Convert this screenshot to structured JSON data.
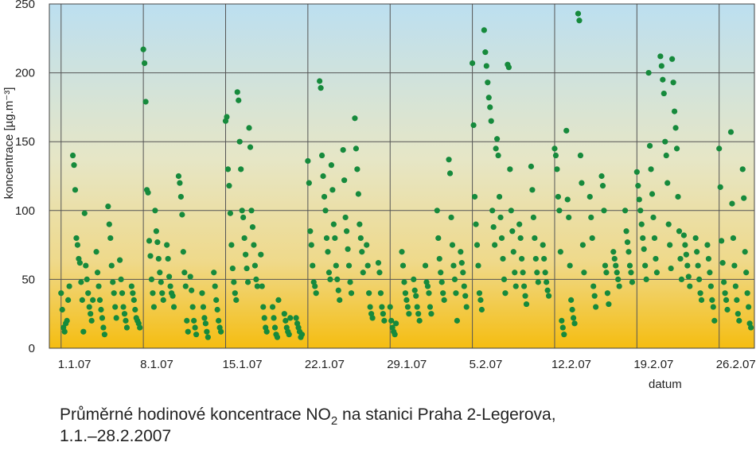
{
  "chart_data": {
    "type": "scatter",
    "title_parts": [
      "Průměrné hodinové koncentrace NO",
      "2",
      " na stanici Praha 2-Legerova,"
    ],
    "title_line2": "1.1.–28.2.2007",
    "xlabel": "datum",
    "ylabel": "koncentrace [µg.m⁻³]",
    "xlim": [
      -1,
      59
    ],
    "xticks": [
      {
        "value": 0,
        "label": "1.1.07"
      },
      {
        "value": 7,
        "label": "8.1.07"
      },
      {
        "value": 14,
        "label": "15.1.07"
      },
      {
        "value": 21,
        "label": "22.1.07"
      },
      {
        "value": 28,
        "label": "29.1.07"
      },
      {
        "value": 35,
        "label": "5.2.07"
      },
      {
        "value": 42,
        "label": "12.2.07"
      },
      {
        "value": 49,
        "label": "19.2.07"
      },
      {
        "value": 56,
        "label": "26.2.07"
      }
    ],
    "ylim": [
      0,
      250
    ],
    "yticks": [
      0,
      50,
      100,
      150,
      200,
      250
    ],
    "grid": true,
    "series": [
      {
        "color": "#168a3c",
        "x": [
          0,
          0.1,
          0.2,
          0.3,
          0.4,
          0.5,
          0.6,
          0.7,
          1,
          1.1,
          1.2,
          1.3,
          1.4,
          1.5,
          1.6,
          1.7,
          1.8,
          1.9,
          2,
          2.1,
          2.2,
          2.3,
          2.4,
          2.5,
          2.6,
          2.7,
          3,
          3.1,
          3.2,
          3.3,
          3.4,
          3.5,
          3.6,
          3.7,
          4,
          4.1,
          4.2,
          4.3,
          4.4,
          4.5,
          4.6,
          4.7,
          5,
          5.1,
          5.2,
          5.3,
          5.4,
          5.5,
          5.6,
          6,
          6.1,
          6.2,
          6.3,
          6.4,
          6.5,
          6.6,
          6.7,
          7,
          7.1,
          7.2,
          7.3,
          7.4,
          7.5,
          7.6,
          7.7,
          7.8,
          7.9,
          8,
          8.1,
          8.2,
          8.3,
          8.4,
          8.5,
          8.6,
          8.7,
          9,
          9.1,
          9.2,
          9.3,
          9.4,
          9.5,
          9.6,
          10,
          10.1,
          10.2,
          10.3,
          10.4,
          10.5,
          10.6,
          10.7,
          10.8,
          11,
          11.1,
          11.2,
          11.3,
          11.4,
          11.5,
          12,
          12.1,
          12.2,
          12.3,
          12.4,
          12.5,
          13,
          13.1,
          13.2,
          13.3,
          13.4,
          13.5,
          13.6,
          14,
          14.1,
          14.2,
          14.3,
          14.4,
          14.5,
          14.6,
          14.7,
          14.8,
          14.9,
          15,
          15.1,
          15.2,
          15.3,
          15.4,
          15.5,
          15.6,
          15.7,
          15.8,
          15.9,
          16,
          16.1,
          16.2,
          16.3,
          16.4,
          16.5,
          16.6,
          16.7,
          17,
          17.1,
          17.2,
          17.3,
          17.4,
          17.5,
          18,
          18.1,
          18.2,
          18.3,
          18.4,
          18.5,
          19,
          19.1,
          19.2,
          19.3,
          19.4,
          19.5,
          20,
          20.1,
          20.2,
          20.3,
          20.4,
          20.5,
          21,
          21.1,
          21.2,
          21.3,
          21.4,
          21.5,
          21.6,
          21.7,
          22,
          22.1,
          22.2,
          22.3,
          22.4,
          22.5,
          22.6,
          22.7,
          22.8,
          22.9,
          23,
          23.1,
          23.2,
          23.3,
          23.4,
          23.5,
          23.6,
          23.7,
          24,
          24.1,
          24.2,
          24.3,
          24.4,
          24.5,
          24.6,
          24.7,
          25,
          25.1,
          25.2,
          25.3,
          25.4,
          25.5,
          25.6,
          25.7,
          26,
          26.1,
          26.2,
          26.3,
          26.4,
          26.5,
          27,
          27.1,
          27.2,
          27.3,
          27.4,
          27.5,
          28,
          28.1,
          28.2,
          28.3,
          28.4,
          28.5,
          29,
          29.1,
          29.2,
          29.3,
          29.4,
          29.5,
          29.6,
          30,
          30.1,
          30.2,
          30.3,
          30.4,
          30.5,
          31,
          31.1,
          31.2,
          31.3,
          31.4,
          31.5,
          32,
          32.1,
          32.2,
          32.3,
          32.4,
          32.5,
          32.6,
          33,
          33.1,
          33.2,
          33.3,
          33.4,
          33.5,
          33.6,
          33.7,
          34,
          34.1,
          34.2,
          34.3,
          34.4,
          34.5,
          35,
          35.1,
          35.2,
          35.3,
          35.4,
          35.5,
          35.6,
          35.7,
          35.8,
          36,
          36.1,
          36.2,
          36.3,
          36.4,
          36.5,
          36.6,
          36.7,
          36.8,
          36.9,
          37,
          37.1,
          37.2,
          37.3,
          37.4,
          37.5,
          37.6,
          37.7,
          37.8,
          38,
          38.1,
          38.2,
          38.3,
          38.4,
          38.5,
          38.6,
          38.7,
          39,
          39.1,
          39.2,
          39.3,
          39.4,
          39.5,
          39.6,
          40,
          40.1,
          40.2,
          40.3,
          40.4,
          40.5,
          40.6,
          41,
          41.1,
          41.2,
          41.3,
          41.4,
          41.5,
          42,
          42.1,
          42.2,
          42.3,
          42.4,
          42.5,
          42.6,
          42.7,
          42.8,
          43,
          43.1,
          43.2,
          43.3,
          43.4,
          43.5,
          43.6,
          43.7,
          44,
          44.1,
          44.2,
          44.3,
          44.4,
          44.5,
          45,
          45.1,
          45.2,
          45.3,
          45.4,
          45.5,
          46,
          46.1,
          46.2,
          46.3,
          46.4,
          46.5,
          46.6,
          47,
          47.1,
          47.2,
          47.3,
          47.4,
          47.5,
          48,
          48.1,
          48.2,
          48.3,
          48.4,
          48.5,
          48.6,
          49,
          49.1,
          49.2,
          49.3,
          49.4,
          49.5,
          49.6,
          49.7,
          49.8,
          50,
          50.1,
          50.2,
          50.3,
          50.4,
          50.5,
          50.6,
          50.7,
          51,
          51.1,
          51.2,
          51.3,
          51.4,
          51.5,
          51.6,
          51.7,
          51.8,
          51.9,
          52,
          52.1,
          52.2,
          52.3,
          52.4,
          52.5,
          52.6,
          52.7,
          52.8,
          53,
          53.1,
          53.2,
          53.3,
          53.4,
          53.5,
          54,
          54.1,
          54.2,
          54.3,
          54.4,
          54.5,
          55,
          55.1,
          55.2,
          55.3,
          55.4,
          55.5,
          55.6,
          56,
          56.1,
          56.2,
          56.3,
          56.4,
          56.5,
          56.6,
          56.7,
          57,
          57.1,
          57.2,
          57.3,
          57.4,
          57.5,
          57.6,
          57.7,
          58,
          58.1,
          58.2,
          58.3,
          58.4,
          58.5,
          58.6,
          58.7
        ],
        "values": [
          40,
          28,
          15,
          12,
          18,
          20,
          35,
          45,
          140,
          133,
          115,
          80,
          75,
          65,
          62,
          48,
          35,
          12,
          98,
          60,
          50,
          40,
          30,
          25,
          20,
          35,
          70,
          55,
          45,
          35,
          28,
          22,
          15,
          10,
          103,
          90,
          80,
          60,
          48,
          40,
          30,
          22,
          64,
          50,
          40,
          30,
          25,
          20,
          15,
          45,
          40,
          35,
          28,
          22,
          20,
          18,
          15,
          217,
          207,
          179,
          115,
          113,
          78,
          67,
          50,
          40,
          30,
          100,
          85,
          77,
          65,
          55,
          48,
          40,
          35,
          75,
          65,
          52,
          45,
          40,
          38,
          30,
          125,
          120,
          110,
          97,
          70,
          55,
          45,
          20,
          12,
          52,
          42,
          30,
          20,
          15,
          10,
          40,
          30,
          22,
          18,
          12,
          8,
          55,
          45,
          35,
          28,
          20,
          15,
          12,
          165,
          168,
          130,
          118,
          98,
          75,
          58,
          48,
          40,
          35,
          186,
          180,
          150,
          130,
          100,
          95,
          80,
          68,
          58,
          48,
          160,
          146,
          100,
          88,
          75,
          60,
          50,
          45,
          68,
          45,
          30,
          22,
          15,
          12,
          30,
          22,
          15,
          10,
          8,
          35,
          25,
          20,
          15,
          12,
          10,
          22,
          22,
          18,
          15,
          12,
          8,
          10,
          136,
          120,
          85,
          75,
          60,
          48,
          45,
          40,
          194,
          189,
          140,
          125,
          110,
          100,
          80,
          70,
          55,
          50,
          133,
          115,
          90,
          80,
          60,
          50,
          42,
          35,
          144,
          122,
          95,
          85,
          72,
          60,
          48,
          40,
          167,
          145,
          130,
          112,
          90,
          80,
          70,
          55,
          75,
          60,
          40,
          30,
          25,
          22,
          62,
          55,
          40,
          30,
          25,
          20,
          30,
          20,
          15,
          12,
          10,
          18,
          70,
          60,
          48,
          40,
          35,
          30,
          25,
          50,
          42,
          38,
          30,
          25,
          20,
          60,
          48,
          45,
          40,
          30,
          25,
          100,
          80,
          65,
          55,
          48,
          40,
          35,
          137,
          127,
          95,
          75,
          60,
          50,
          40,
          20,
          70,
          62,
          55,
          45,
          38,
          30,
          207,
          162,
          110,
          90,
          75,
          60,
          40,
          35,
          28,
          231,
          215,
          205,
          193,
          182,
          175,
          165,
          100,
          88,
          75,
          145,
          152,
          140,
          110,
          95,
          80,
          65,
          50,
          40,
          206,
          204,
          130,
          100,
          85,
          70,
          55,
          45,
          90,
          80,
          65,
          55,
          45,
          38,
          32,
          132,
          115,
          95,
          80,
          65,
          55,
          48,
          75,
          65,
          55,
          48,
          42,
          38,
          145,
          140,
          130,
          110,
          100,
          70,
          20,
          15,
          10,
          158,
          108,
          95,
          60,
          35,
          28,
          22,
          18,
          243,
          238,
          140,
          120,
          75,
          55,
          110,
          95,
          80,
          45,
          38,
          30,
          125,
          118,
          100,
          60,
          55,
          40,
          32,
          70,
          65,
          60,
          55,
          50,
          45,
          100,
          85,
          77,
          70,
          60,
          55,
          48,
          128,
          118,
          108,
          100,
          90,
          80,
          72,
          60,
          50,
          200,
          147,
          130,
          112,
          95,
          80,
          65,
          55,
          212,
          205,
          195,
          185,
          150,
          140,
          120,
          90,
          75,
          58,
          210,
          193,
          172,
          160,
          145,
          110,
          85,
          65,
          50,
          82,
          75,
          68,
          60,
          52,
          45,
          80,
          70,
          60,
          50,
          40,
          35,
          75,
          65,
          55,
          45,
          35,
          30,
          20,
          145,
          117,
          78,
          62,
          48,
          40,
          35,
          28,
          157,
          105,
          80,
          60,
          45,
          35,
          25,
          20,
          130,
          109,
          70,
          55,
          40,
          30,
          18,
          15
        ]
      }
    ]
  }
}
